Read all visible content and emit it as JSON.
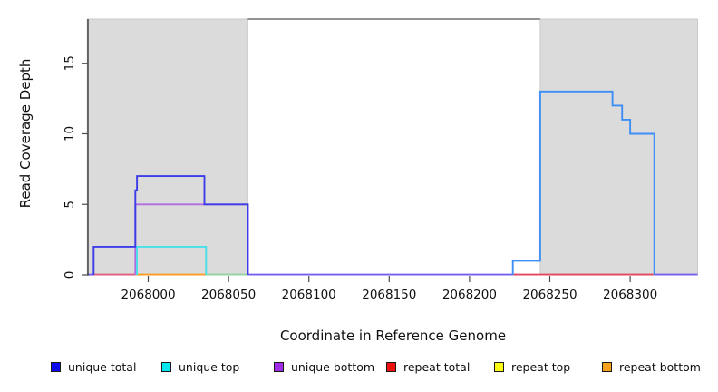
{
  "chart_data": {
    "type": "line",
    "subtype": "step-coverage-plot",
    "title": "",
    "xlabel": "Coordinate in Reference Genome",
    "ylabel": "Read Coverage Depth",
    "xlim": [
      2067962,
      2068342
    ],
    "ylim": [
      0,
      18.1
    ],
    "x_ticks": [
      "2068000",
      "2068050",
      "2068100",
      "2068150",
      "2068200",
      "2068250",
      "2068300"
    ],
    "x_tick_values": [
      2068000,
      2068050,
      2068100,
      2068150,
      2068200,
      2068250,
      2068300
    ],
    "y_ticks": [
      "0",
      "5",
      "10",
      "15"
    ],
    "y_tick_values": [
      0,
      5,
      10,
      15
    ],
    "grid": false,
    "legend_position": "bottom",
    "background_color": "#ffffff",
    "shaded_regions": [
      {
        "from": 2067962,
        "to": 2068062,
        "color": "#dbdbdb"
      },
      {
        "from": 2068244,
        "to": 2068342,
        "color": "#dbdbdb"
      }
    ],
    "series": [
      {
        "name": "unique total",
        "legend_color": "#0d0dee",
        "parts": [
          {
            "color": "#3c3ce8",
            "points": [
              [
                2067966,
                0
              ],
              [
                2067966,
                2
              ],
              [
                2067992,
                2
              ],
              [
                2067992,
                6
              ],
              [
                2067993,
                6
              ],
              [
                2067993,
                7
              ],
              [
                2068035,
                7
              ],
              [
                2068035,
                5
              ],
              [
                2068062,
                5
              ],
              [
                2068062,
                0
              ]
            ]
          },
          {
            "color": "#3e8ef7",
            "points": [
              [
                2068227,
                0
              ],
              [
                2068227,
                1
              ],
              [
                2068244,
                1
              ],
              [
                2068244,
                13
              ],
              [
                2068289,
                13
              ],
              [
                2068289,
                12
              ],
              [
                2068295,
                12
              ],
              [
                2068295,
                11
              ],
              [
                2068300,
                11
              ],
              [
                2068300,
                10
              ],
              [
                2068315,
                10
              ],
              [
                2068315,
                0
              ]
            ]
          }
        ]
      },
      {
        "name": "unique top",
        "legend_color": "#00e8ee",
        "parts": [
          {
            "color": "#45e0e8",
            "points": [
              [
                2067993,
                0
              ],
              [
                2067993,
                2
              ],
              [
                2068036,
                2
              ],
              [
                2068036,
                0
              ]
            ]
          }
        ]
      },
      {
        "name": "unique bottom",
        "legend_color": "#a12ce8",
        "parts": [
          {
            "color": "#b06ce0",
            "points": [
              [
                2067992,
                0
              ],
              [
                2067992,
                5
              ],
              [
                2068062,
                5
              ],
              [
                2068062,
                0
              ]
            ]
          }
        ]
      },
      {
        "name": "repeat total",
        "legend_color": "#ee1111",
        "parts": []
      },
      {
        "name": "repeat top",
        "legend_color": "#fcfc13",
        "parts": []
      },
      {
        "name": "repeat bottom",
        "legend_color": "#f5a11c",
        "parts": []
      }
    ],
    "baseline_segments": [
      {
        "from": 2067962,
        "to": 2067966,
        "depth": 0,
        "color": "#7560ee"
      },
      {
        "from": 2067966,
        "to": 2067992,
        "depth": 0,
        "color": "#de5e80"
      },
      {
        "from": 2067992,
        "to": 2068036,
        "depth": 0,
        "color": "#ff9c20"
      },
      {
        "from": 2068036,
        "to": 2068062,
        "depth": 0,
        "color": "#90d59e"
      },
      {
        "from": 2068062,
        "to": 2068227,
        "depth": 0,
        "color": "#7560ee"
      },
      {
        "from": 2068227,
        "to": 2068244,
        "depth": 0,
        "color": "#e2455f"
      },
      {
        "from": 2068244,
        "to": 2068315,
        "depth": 0,
        "color": "#e2455f"
      },
      {
        "from": 2068315,
        "to": 2068342,
        "depth": 0,
        "color": "#7560ee"
      }
    ],
    "frame_colors": {
      "axis_line": "#3c3c3c",
      "tick_mark": "#4a4a4a",
      "top_border": "#6e6e6e",
      "region_border": "#c2c2c2"
    }
  }
}
